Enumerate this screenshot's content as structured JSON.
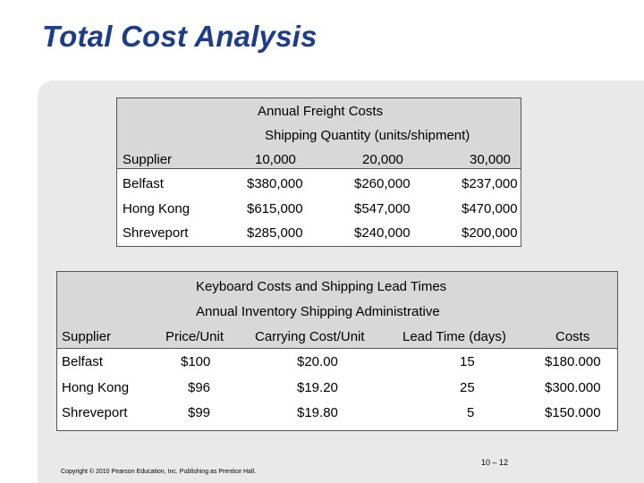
{
  "slide": {
    "title": "Total Cost Analysis",
    "page_number": "10 – 12",
    "copyright": "Copyright © 2010 Pearson Education, Inc. Publishing as Prentice Hall."
  },
  "freight_table": {
    "title": "Annual Freight Costs",
    "subtitle": "Shipping Quantity (units/shipment)",
    "columns": [
      "Supplier",
      "10,000",
      "20,000",
      "30,000"
    ],
    "rows": [
      [
        "Belfast",
        "$380,000",
        "$260,000",
        "$237,000"
      ],
      [
        "Hong Kong",
        "$615,000",
        "$547,000",
        "$470,000"
      ],
      [
        "Shreveport",
        "$285,000",
        "$240,000",
        "$200,000"
      ]
    ]
  },
  "keyboard_table": {
    "title": "Keyboard Costs and Shipping Lead Times",
    "subtitle": "Annual Inventory Shipping Administrative",
    "columns": [
      "Supplier",
      "Price/Unit",
      "Carrying Cost/Unit",
      "Lead Time (days)",
      "Costs"
    ],
    "rows": [
      [
        "Belfast",
        "$100",
        "$20.00",
        "15",
        "$180.000"
      ],
      [
        "Hong Kong",
        "$96",
        "$19.20",
        "25",
        "$300.000"
      ],
      [
        "Shreveport",
        "$99",
        "$19.80",
        "5",
        "$150.000"
      ]
    ]
  }
}
